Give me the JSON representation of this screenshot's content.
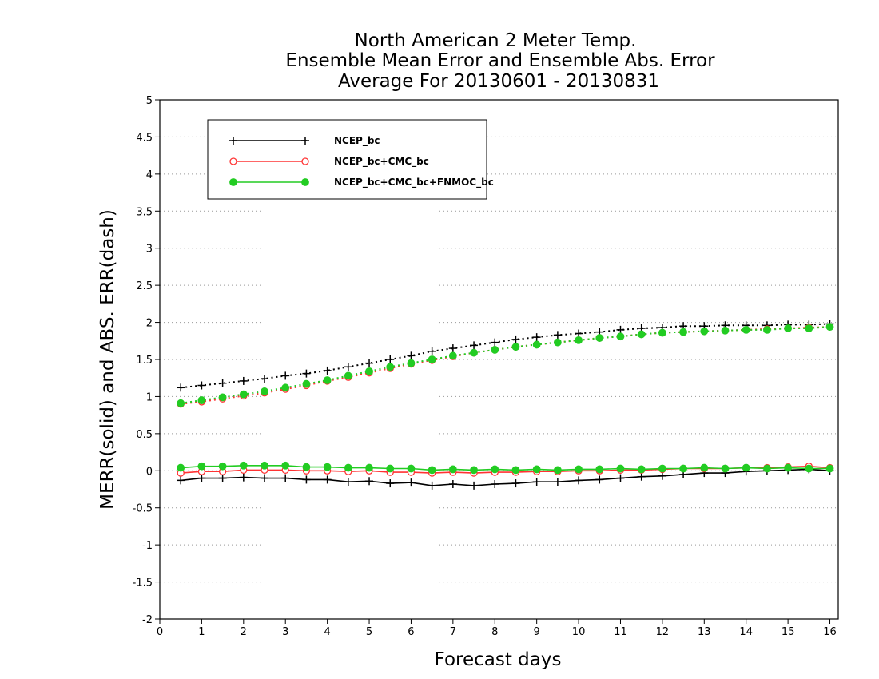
{
  "chart_data": {
    "type": "line",
    "title": [
      "North American 2 Meter Temp.",
      "Ensemble Mean Error and Ensemble Abs. Error",
      "Average For 20130601 - 20130831"
    ],
    "xlabel": "Forecast days",
    "ylabel": "MERR(solid) and ABS. ERR(dash)",
    "xlim": [
      0,
      16.2
    ],
    "ylim": [
      -2,
      5
    ],
    "xticks": [
      0,
      1,
      2,
      3,
      4,
      5,
      6,
      7,
      8,
      9,
      10,
      11,
      12,
      13,
      14,
      15,
      16
    ],
    "yticks": [
      -2,
      -1.5,
      -1,
      -0.5,
      0,
      0.5,
      1,
      1.5,
      2,
      2.5,
      3,
      3.5,
      4,
      4.5,
      5
    ],
    "grid": "horizontal dotted",
    "legend_position": "top-left",
    "x": [
      0.5,
      1,
      1.5,
      2,
      2.5,
      3,
      3.5,
      4,
      4.5,
      5,
      5.5,
      6,
      6.5,
      7,
      7.5,
      8,
      8.5,
      9,
      9.5,
      10,
      10.5,
      11,
      11.5,
      12,
      12.5,
      13,
      13.5,
      14,
      14.5,
      15,
      15.5,
      16
    ],
    "series": [
      {
        "name": "NCEP_bc",
        "color": "#000000",
        "marker": "plus",
        "merr": [
          -0.13,
          -0.1,
          -0.1,
          -0.09,
          -0.1,
          -0.1,
          -0.12,
          -0.12,
          -0.15,
          -0.14,
          -0.17,
          -0.16,
          -0.2,
          -0.18,
          -0.2,
          -0.18,
          -0.17,
          -0.15,
          -0.15,
          -0.13,
          -0.12,
          -0.1,
          -0.08,
          -0.07,
          -0.05,
          -0.03,
          -0.03,
          -0.01,
          0.0,
          0.01,
          0.02,
          0.0
        ],
        "abs_err": [
          1.12,
          1.15,
          1.18,
          1.21,
          1.24,
          1.28,
          1.31,
          1.35,
          1.4,
          1.45,
          1.5,
          1.55,
          1.61,
          1.65,
          1.69,
          1.73,
          1.77,
          1.8,
          1.83,
          1.85,
          1.87,
          1.9,
          1.92,
          1.93,
          1.95,
          1.95,
          1.96,
          1.96,
          1.96,
          1.97,
          1.97,
          1.98
        ]
      },
      {
        "name": "NCEP_bc+CMC_bc",
        "color": "#ff3333",
        "marker": "open-circle",
        "merr": [
          -0.03,
          -0.01,
          -0.01,
          0.01,
          0.01,
          0.01,
          0.0,
          0.0,
          -0.01,
          0.0,
          -0.02,
          -0.02,
          -0.03,
          -0.02,
          -0.03,
          -0.02,
          -0.02,
          -0.01,
          -0.01,
          0.0,
          0.0,
          0.01,
          0.01,
          0.02,
          0.03,
          0.03,
          0.03,
          0.04,
          0.04,
          0.05,
          0.06,
          0.04
        ],
        "abs_err": [
          0.9,
          0.93,
          0.97,
          1.01,
          1.05,
          1.1,
          1.15,
          1.21,
          1.26,
          1.32,
          1.38,
          1.44,
          1.49,
          1.54,
          1.59,
          1.63,
          1.67,
          1.7,
          1.73,
          1.76,
          1.79,
          1.81,
          1.84,
          1.86,
          1.87,
          1.88,
          1.89,
          1.9,
          1.91,
          1.92,
          1.93,
          1.94
        ]
      },
      {
        "name": "NCEP_bc+CMC_bc+FNMOC_bc",
        "color": "#22cc22",
        "marker": "filled-circle",
        "merr": [
          0.04,
          0.06,
          0.06,
          0.07,
          0.07,
          0.07,
          0.05,
          0.05,
          0.04,
          0.04,
          0.03,
          0.03,
          0.01,
          0.02,
          0.01,
          0.02,
          0.01,
          0.02,
          0.01,
          0.02,
          0.02,
          0.03,
          0.02,
          0.03,
          0.03,
          0.04,
          0.03,
          0.04,
          0.03,
          0.04,
          0.03,
          0.03
        ],
        "abs_err": [
          0.91,
          0.95,
          0.99,
          1.03,
          1.07,
          1.12,
          1.17,
          1.22,
          1.28,
          1.34,
          1.4,
          1.45,
          1.5,
          1.55,
          1.59,
          1.63,
          1.67,
          1.7,
          1.73,
          1.76,
          1.79,
          1.81,
          1.84,
          1.86,
          1.87,
          1.88,
          1.89,
          1.9,
          1.9,
          1.92,
          1.92,
          1.94
        ]
      }
    ]
  }
}
